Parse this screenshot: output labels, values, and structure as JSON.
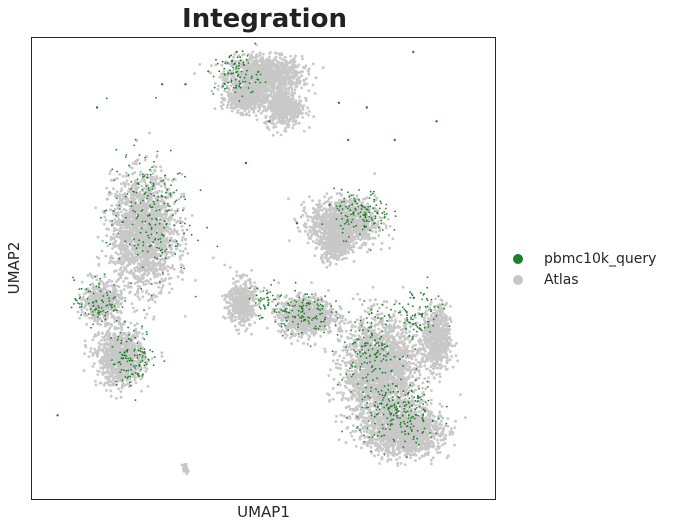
{
  "chart_data": {
    "type": "scatter",
    "title": "Integration",
    "xlabel": "UMAP1",
    "ylabel": "UMAP2",
    "grid": false,
    "legend_placement": "right",
    "ticks": "none",
    "series": [
      {
        "name": "pbmc10k_query",
        "color": "#1f7f2a",
        "points": [
          [
            0.055,
            0.185
          ],
          [
            0.44,
            0.97
          ],
          [
            0.43,
            0.95
          ],
          [
            0.82,
            0.97
          ],
          [
            0.87,
            0.82
          ],
          [
            0.33,
            0.9
          ],
          [
            0.28,
            0.9
          ],
          [
            0.14,
            0.85
          ],
          [
            0.57,
            0.6
          ],
          [
            0.51,
            0.82
          ],
          [
            0.66,
            0.86
          ],
          [
            0.68,
            0.78
          ],
          [
            0.78,
            0.78
          ],
          [
            0.64,
            0.64
          ],
          [
            0.46,
            0.73
          ],
          [
            0.72,
            0.85
          ]
        ],
        "clusters": [
          {
            "center": [
              0.44,
              0.92
            ],
            "spread": [
              0.05,
              0.05
            ],
            "count": 90
          },
          {
            "center": [
              0.25,
              0.62
            ],
            "spread": [
              0.09,
              0.14
            ],
            "count": 220
          },
          {
            "center": [
              0.14,
              0.43
            ],
            "spread": [
              0.05,
              0.05
            ],
            "count": 90
          },
          {
            "center": [
              0.22,
              0.31
            ],
            "spread": [
              0.05,
              0.06
            ],
            "count": 110
          },
          {
            "center": [
              0.58,
              0.41
            ],
            "spread": [
              0.06,
              0.05
            ],
            "count": 120
          },
          {
            "center": [
              0.71,
              0.62
            ],
            "spread": [
              0.06,
              0.05
            ],
            "count": 130
          },
          {
            "center": [
              0.79,
              0.19
            ],
            "spread": [
              0.09,
              0.07
            ],
            "count": 230
          },
          {
            "center": [
              0.73,
              0.33
            ],
            "spread": [
              0.06,
              0.08
            ],
            "count": 150
          },
          {
            "center": [
              0.83,
              0.4
            ],
            "spread": [
              0.05,
              0.06
            ],
            "count": 80
          },
          {
            "center": [
              0.5,
              0.43
            ],
            "spread": [
              0.04,
              0.04
            ],
            "count": 40
          }
        ]
      },
      {
        "name": "Atlas",
        "color": "#c8c8c8",
        "points": [],
        "clusters": [
          {
            "center": [
              0.5,
              0.92
            ],
            "spread": [
              0.08,
              0.04
            ],
            "count": 1200
          },
          {
            "center": [
              0.46,
              0.87
            ],
            "spread": [
              0.04,
              0.03
            ],
            "count": 500
          },
          {
            "center": [
              0.54,
              0.85
            ],
            "spread": [
              0.04,
              0.04
            ],
            "count": 500
          },
          {
            "center": [
              0.24,
              0.58
            ],
            "spread": [
              0.07,
              0.12
            ],
            "count": 1800
          },
          {
            "center": [
              0.15,
              0.43
            ],
            "spread": [
              0.04,
              0.04
            ],
            "count": 500
          },
          {
            "center": [
              0.19,
              0.31
            ],
            "spread": [
              0.05,
              0.06
            ],
            "count": 900
          },
          {
            "center": [
              0.45,
              0.43
            ],
            "spread": [
              0.03,
              0.05
            ],
            "count": 450
          },
          {
            "center": [
              0.67,
              0.6
            ],
            "spread": [
              0.07,
              0.05
            ],
            "count": 1200
          },
          {
            "center": [
              0.59,
              0.4
            ],
            "spread": [
              0.06,
              0.04
            ],
            "count": 900
          },
          {
            "center": [
              0.75,
              0.28
            ],
            "spread": [
              0.08,
              0.11
            ],
            "count": 2200
          },
          {
            "center": [
              0.8,
              0.15
            ],
            "spread": [
              0.08,
              0.05
            ],
            "count": 1400
          },
          {
            "center": [
              0.87,
              0.35
            ],
            "spread": [
              0.03,
              0.07
            ],
            "count": 600
          },
          {
            "center": [
              0.65,
              0.55
            ],
            "spread": [
              0.03,
              0.03
            ],
            "count": 300
          },
          {
            "center": [
              0.33,
              0.07
            ],
            "spread": [
              0.006,
              0.01
            ],
            "count": 30
          }
        ]
      }
    ]
  }
}
